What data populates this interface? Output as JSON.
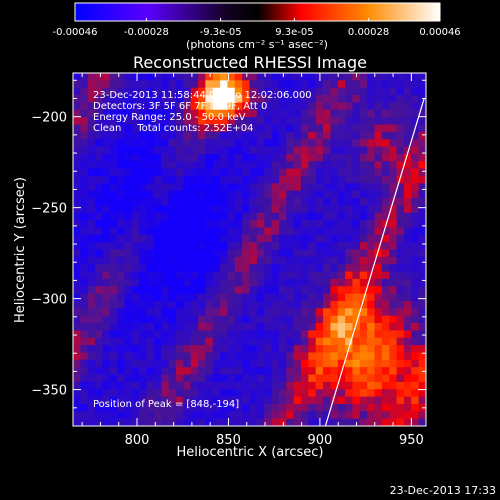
{
  "colorbar": {
    "ticks": [
      "-0.00046",
      "-0.00028",
      "-9.3e-05",
      "9.3e-05",
      "0.00028",
      "0.00046"
    ],
    "tick_values": [
      -0.00046,
      -0.00028,
      -9.3e-05,
      9.3e-05,
      0.00028,
      0.00046
    ],
    "range": [
      -0.00046,
      0.00046
    ],
    "unit_label": "(photons cm⁻² s⁻¹ asec⁻²)",
    "colors": [
      "#0000ff",
      "#7700ff",
      "#000000",
      "#ff0000",
      "#ff8800",
      "#ffffff"
    ]
  },
  "title": "Reconstructed RHESSI Image",
  "info_lines": [
    "23-Dec-2013 11:58:44.000 to 12:02:06.000",
    "Detectors: 3F 5F 6F 7F 8F 9F, Att 0",
    "Energy Range: 25.0 - 50.0 keV",
    "Clean     Total counts: 2.52E+04"
  ],
  "peak_label": "Position of Peak = [848,-194]",
  "footer_timestamp": "23-Dec-2013 17:33",
  "chart_data": {
    "type": "heatmap",
    "xlabel": "Heliocentric X (arcsec)",
    "ylabel": "Heliocentric Y (arcsec)",
    "xlim": [
      765,
      958
    ],
    "ylim": [
      -370,
      -176
    ],
    "xticks": [
      800,
      850,
      900,
      950
    ],
    "yticks": [
      -200,
      -250,
      -300,
      -350
    ],
    "peak": [
      848,
      -194
    ],
    "limb_line": [
      [
        903,
        -370
      ],
      [
        957,
        -190
      ]
    ],
    "grid_nx": 48,
    "grid_ny": 48
  }
}
